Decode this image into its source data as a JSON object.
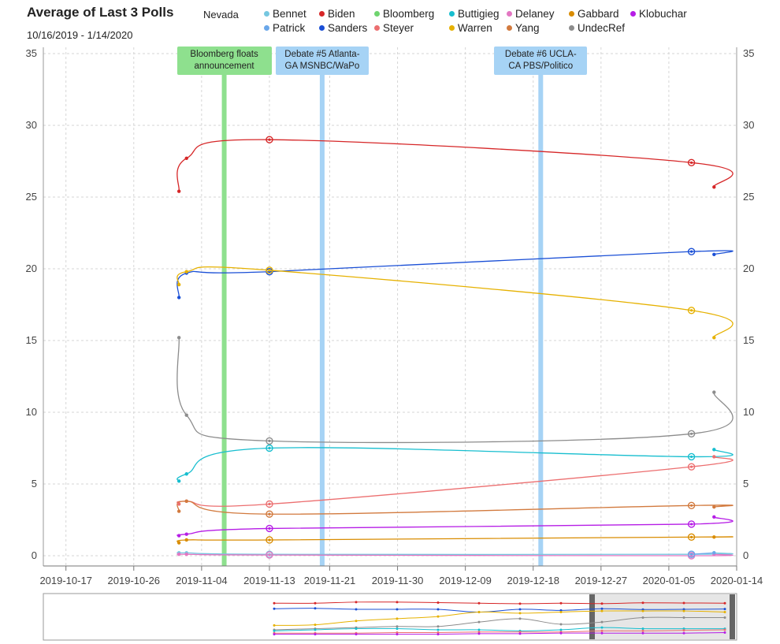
{
  "header": {
    "title": "Average of Last 3 Polls",
    "date_range": "10/16/2019 - 1/14/2020",
    "state": "Nevada"
  },
  "legend": [
    {
      "name": "Bennet",
      "color": "#76c7e0"
    },
    {
      "name": "Biden",
      "color": "#d62728"
    },
    {
      "name": "Bloomberg",
      "color": "#6fd46f"
    },
    {
      "name": "Buttigieg",
      "color": "#17becf"
    },
    {
      "name": "Delaney",
      "color": "#e377c2"
    },
    {
      "name": "Gabbard",
      "color": "#d98c00"
    },
    {
      "name": "Klobuchar",
      "color": "#b61de6"
    },
    {
      "name": "Patrick",
      "color": "#6aa7ea"
    },
    {
      "name": "Sanders",
      "color": "#1a4fd6"
    },
    {
      "name": "Steyer",
      "color": "#ec6f70"
    },
    {
      "name": "Warren",
      "color": "#e6b100"
    },
    {
      "name": "Yang",
      "color": "#d27a3e"
    },
    {
      "name": "UndecRef",
      "color": "#8c8c8c"
    }
  ],
  "annotations": [
    {
      "label_line1": "Bloomberg floats",
      "label_line2": "announcement",
      "date": "2019-11-07",
      "color": "#8ee08e"
    },
    {
      "label_line1": "Debate #5 Atlanta-",
      "label_line2": "GA MSNBC/WaPo",
      "date": "2019-11-20",
      "color": "#a6d3f5"
    },
    {
      "label_line1": "Debate #6 UCLA-",
      "label_line2": "CA PBS/Politico",
      "date": "2019-12-19",
      "color": "#a6d3f5"
    }
  ],
  "chart_data": {
    "type": "line",
    "x_axis": {
      "type": "date",
      "range": [
        "2019-10-14",
        "2020-01-14"
      ],
      "ticks": [
        "2019-10-17",
        "2019-10-26",
        "2019-11-04",
        "2019-11-13",
        "2019-11-21",
        "2019-11-30",
        "2019-12-09",
        "2019-12-18",
        "2019-12-27",
        "2020-01-05",
        "2020-01-14"
      ]
    },
    "y_axis": {
      "range": [
        0,
        35
      ],
      "ticks": [
        0,
        5,
        10,
        15,
        20,
        25,
        30,
        35
      ],
      "mirrored_right": true
    },
    "grid": true,
    "x": [
      "2019-11-01",
      "2019-11-02",
      "2019-11-13",
      "2020-01-08",
      "2020-01-11"
    ],
    "series": [
      {
        "name": "Biden",
        "values": [
          25.4,
          27.7,
          29.0,
          27.4,
          25.7
        ]
      },
      {
        "name": "Sanders",
        "values": [
          18.0,
          19.7,
          19.8,
          21.2,
          21.0
        ]
      },
      {
        "name": "Warren",
        "values": [
          18.9,
          19.8,
          19.9,
          17.1,
          15.2
        ]
      },
      {
        "name": "UndecRef",
        "values": [
          15.2,
          9.8,
          8.0,
          8.5,
          11.4
        ]
      },
      {
        "name": "Buttigieg",
        "values": [
          5.2,
          5.7,
          7.5,
          6.9,
          7.4
        ]
      },
      {
        "name": "Steyer",
        "values": [
          3.6,
          3.8,
          3.6,
          6.2,
          6.9
        ]
      },
      {
        "name": "Yang",
        "values": [
          3.1,
          3.8,
          2.9,
          3.5,
          3.4
        ]
      },
      {
        "name": "Klobuchar",
        "values": [
          1.4,
          1.5,
          1.9,
          2.2,
          2.7
        ]
      },
      {
        "name": "Gabbard",
        "values": [
          0.9,
          1.1,
          1.1,
          1.3,
          1.3
        ]
      },
      {
        "name": "Bennet",
        "values": [
          0.2,
          0.2,
          0.1,
          0.1,
          0.2
        ]
      },
      {
        "name": "Delaney",
        "values": [
          0.1,
          0.1,
          0.05,
          0.0,
          0.1
        ]
      },
      {
        "name": "Patrick",
        "values": [
          null,
          null,
          null,
          0.1,
          0.2
        ]
      }
    ]
  }
}
